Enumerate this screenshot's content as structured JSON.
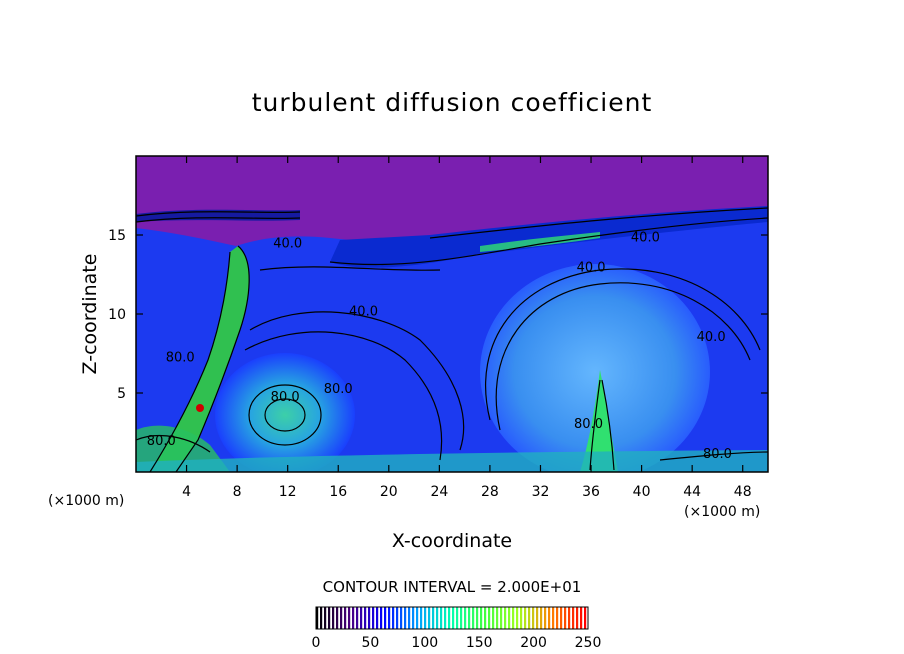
{
  "chart_data": {
    "type": "heatmap",
    "title": "turbulent diffusion coefficient",
    "xlabel": "X-coordinate",
    "ylabel": "Z-coordinate",
    "x_unit": "(×1000 m)",
    "z_unit": "(×1000 m)",
    "xlim": [
      0,
      50
    ],
    "ylim": [
      0,
      20
    ],
    "x_ticks": [
      4,
      8,
      12,
      16,
      20,
      24,
      28,
      32,
      36,
      40,
      44,
      48
    ],
    "y_ticks": [
      5,
      10,
      15
    ],
    "contour_interval": "CONTOUR INTERVAL = 2.000E+01",
    "contour_labels": [
      {
        "text": "40.0",
        "x": 12.0,
        "z": 14.2
      },
      {
        "text": "40.0",
        "x": 40.3,
        "z": 14.6
      },
      {
        "text": "40.0",
        "x": 36.0,
        "z": 12.7
      },
      {
        "text": "40.0",
        "x": 18.0,
        "z": 9.9
      },
      {
        "text": "40.0",
        "x": 45.5,
        "z": 8.3
      },
      {
        "text": "80.0",
        "x": 16.0,
        "z": 5.0
      },
      {
        "text": "80.0",
        "x": 11.8,
        "z": 4.5
      },
      {
        "text": "80.0",
        "x": 35.8,
        "z": 2.8
      },
      {
        "text": "80.0",
        "x": 2.0,
        "z": 1.7
      },
      {
        "text": "80.0",
        "x": 46.0,
        "z": 0.9
      },
      {
        "text": "80.0",
        "x": 3.5,
        "z": 7.0
      }
    ],
    "colorbar": {
      "min": 0,
      "max": 250,
      "ticks": [
        0,
        50,
        100,
        150,
        200,
        250
      ],
      "colors": [
        "#000000",
        "#4b0082",
        "#0000ff",
        "#00a0ff",
        "#00ffb0",
        "#40ff40",
        "#a0ff20",
        "#ff8000",
        "#ff0000"
      ]
    },
    "field_colors": {
      "upper": "#7a1fb0",
      "mid": "#2a4cff",
      "eddy": "#4aa8f0",
      "high": "#30e070",
      "peak": "#d00000",
      "line": "#000000"
    }
  }
}
